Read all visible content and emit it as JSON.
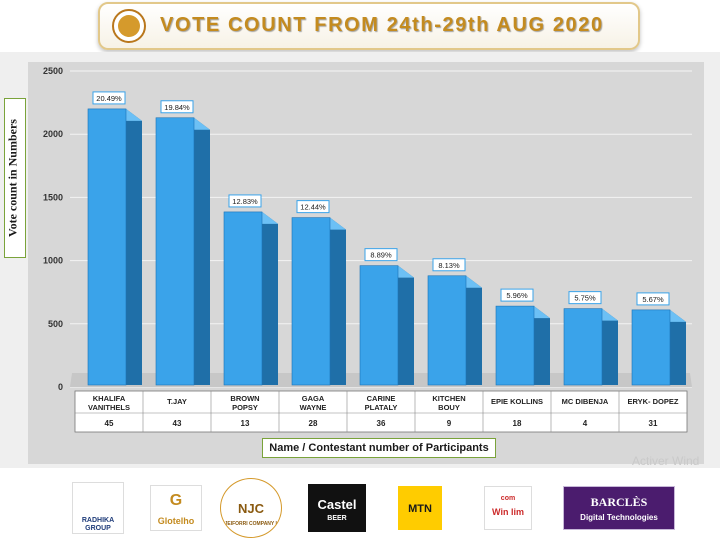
{
  "title": "VOTE COUNT FROM 24th-29th AUG 2020",
  "chart_data": {
    "type": "bar",
    "title": "VOTE COUNT FROM 24th-29th AUG 2020",
    "ylabel": "Vote count in Numbers",
    "xlabel": "Name / Contestant number of Participants",
    "ylim": [
      0,
      2500
    ],
    "yticks": [
      0,
      500,
      1000,
      1500,
      2000,
      2500
    ],
    "grid": true,
    "categories": [
      {
        "name_lines": [
          "KHALIFA",
          "VANITHELS"
        ],
        "number": "45"
      },
      {
        "name_lines": [
          "T.JAY"
        ],
        "number": "43"
      },
      {
        "name_lines": [
          "BROWN",
          "POPSY"
        ],
        "number": "13"
      },
      {
        "name_lines": [
          "GAGA",
          "WAYNE"
        ],
        "number": "28"
      },
      {
        "name_lines": [
          "CARINE",
          "PLATALY"
        ],
        "number": "36"
      },
      {
        "name_lines": [
          "KITCHEN",
          "BOUY"
        ],
        "number": "9"
      },
      {
        "name_lines": [
          "EPIE KOLLINS"
        ],
        "number": "18"
      },
      {
        "name_lines": [
          "MC DIBENJA"
        ],
        "number": "4"
      },
      {
        "name_lines": [
          "ERYK- DOPEZ"
        ],
        "number": "31"
      }
    ],
    "values": [
      2200,
      2130,
      1385,
      1340,
      960,
      880,
      640,
      620,
      610
    ],
    "data_labels": [
      "20.49%",
      "19.84%",
      "12.83%",
      "12.44%",
      "8.89%",
      "8.13%",
      "5.96%",
      "5.75%",
      "5.67%"
    ],
    "colors": {
      "bar_front": "#3aa3ea",
      "bar_side": "#1f6fa8",
      "bar_top": "#6cc0f5",
      "label_border": "#3aa3ea"
    }
  },
  "watermark": "Activer Wind",
  "sponsors": [
    {
      "icon": "lion-logo",
      "lines": [
        "RADHIKA",
        "GROUP"
      ]
    },
    {
      "icon": "g-logo",
      "lines": [
        "G",
        "Glotelho"
      ]
    },
    {
      "icon": "njc-seal",
      "lines": [
        "NJC",
        "NJEIFORRI COMPANY LTD"
      ]
    },
    {
      "icon": "castel-logo",
      "lines": [
        "Castel",
        "BEER"
      ]
    },
    {
      "icon": "mtn-logo",
      "lines": [
        "MTN"
      ]
    },
    {
      "icon": "winlim-logo",
      "lines": [
        "com",
        "Win lim"
      ]
    },
    {
      "icon": "barcles-logo",
      "lines": [
        "BARCLÈS",
        "Digital Technologies"
      ]
    }
  ]
}
